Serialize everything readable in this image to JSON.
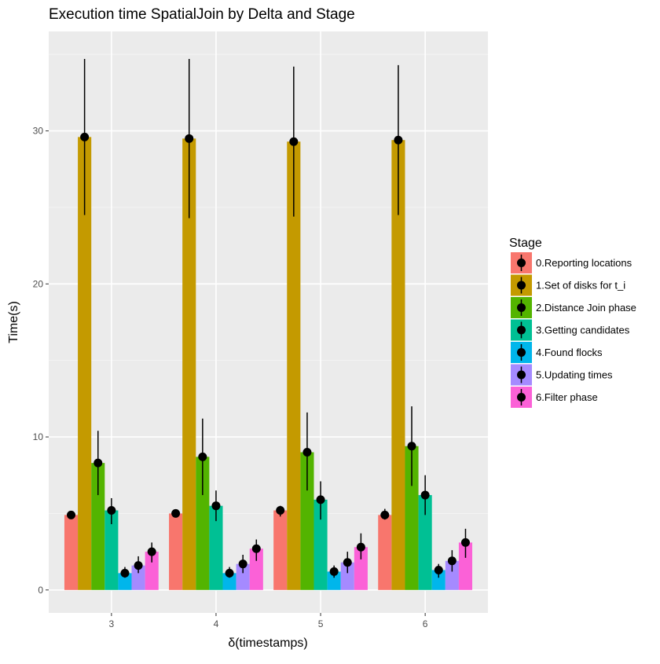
{
  "chart_data": {
    "type": "bar",
    "title": "Execution time SpatialJoin by Delta and Stage",
    "xlabel": "δ(timestamps)",
    "ylabel": "Time(s)",
    "categories": [
      "3",
      "4",
      "5",
      "6"
    ],
    "ylim": [
      -1.5,
      36.5
    ],
    "yticks": [
      0,
      10,
      20,
      30
    ],
    "grid": true,
    "legend": {
      "title": "Stage",
      "position": "right"
    },
    "series": [
      {
        "name": "0.Reporting locations",
        "color": "#F8766D",
        "values": [
          4.9,
          5.0,
          5.2,
          4.9
        ],
        "err_low": [
          4.8,
          4.9,
          4.8,
          4.6
        ],
        "err_high": [
          5.0,
          5.1,
          5.5,
          5.3
        ]
      },
      {
        "name": "1.Set of disks for t_i",
        "color": "#C49A00",
        "values": [
          29.6,
          29.5,
          29.3,
          29.4
        ],
        "err_low": [
          24.5,
          24.3,
          24.4,
          24.5
        ],
        "err_high": [
          34.7,
          34.7,
          34.2,
          34.3
        ]
      },
      {
        "name": "2.Distance Join phase",
        "color": "#53B400",
        "values": [
          8.3,
          8.7,
          9.0,
          9.4
        ],
        "err_low": [
          6.2,
          6.2,
          6.5,
          6.8
        ],
        "err_high": [
          10.4,
          11.2,
          11.6,
          12.0
        ]
      },
      {
        "name": "3.Getting candidates",
        "color": "#00C094",
        "values": [
          5.2,
          5.5,
          5.9,
          6.2
        ],
        "err_low": [
          4.3,
          4.5,
          4.6,
          4.9
        ],
        "err_high": [
          6.0,
          6.5,
          7.1,
          7.5
        ]
      },
      {
        "name": "4.Found flocks",
        "color": "#00B6EB",
        "values": [
          1.1,
          1.1,
          1.2,
          1.3
        ],
        "err_low": [
          0.8,
          0.8,
          0.8,
          0.8
        ],
        "err_high": [
          1.5,
          1.5,
          1.6,
          1.7
        ]
      },
      {
        "name": "5.Updating times",
        "color": "#A58AFF",
        "values": [
          1.6,
          1.7,
          1.8,
          1.9
        ],
        "err_low": [
          1.1,
          1.1,
          1.1,
          1.2
        ],
        "err_high": [
          2.2,
          2.3,
          2.5,
          2.6
        ]
      },
      {
        "name": "6.Filter phase",
        "color": "#FB61D7",
        "values": [
          2.5,
          2.7,
          2.8,
          3.1
        ],
        "err_low": [
          1.8,
          1.9,
          2.0,
          2.1
        ],
        "err_high": [
          3.1,
          3.3,
          3.7,
          4.0
        ]
      }
    ]
  }
}
